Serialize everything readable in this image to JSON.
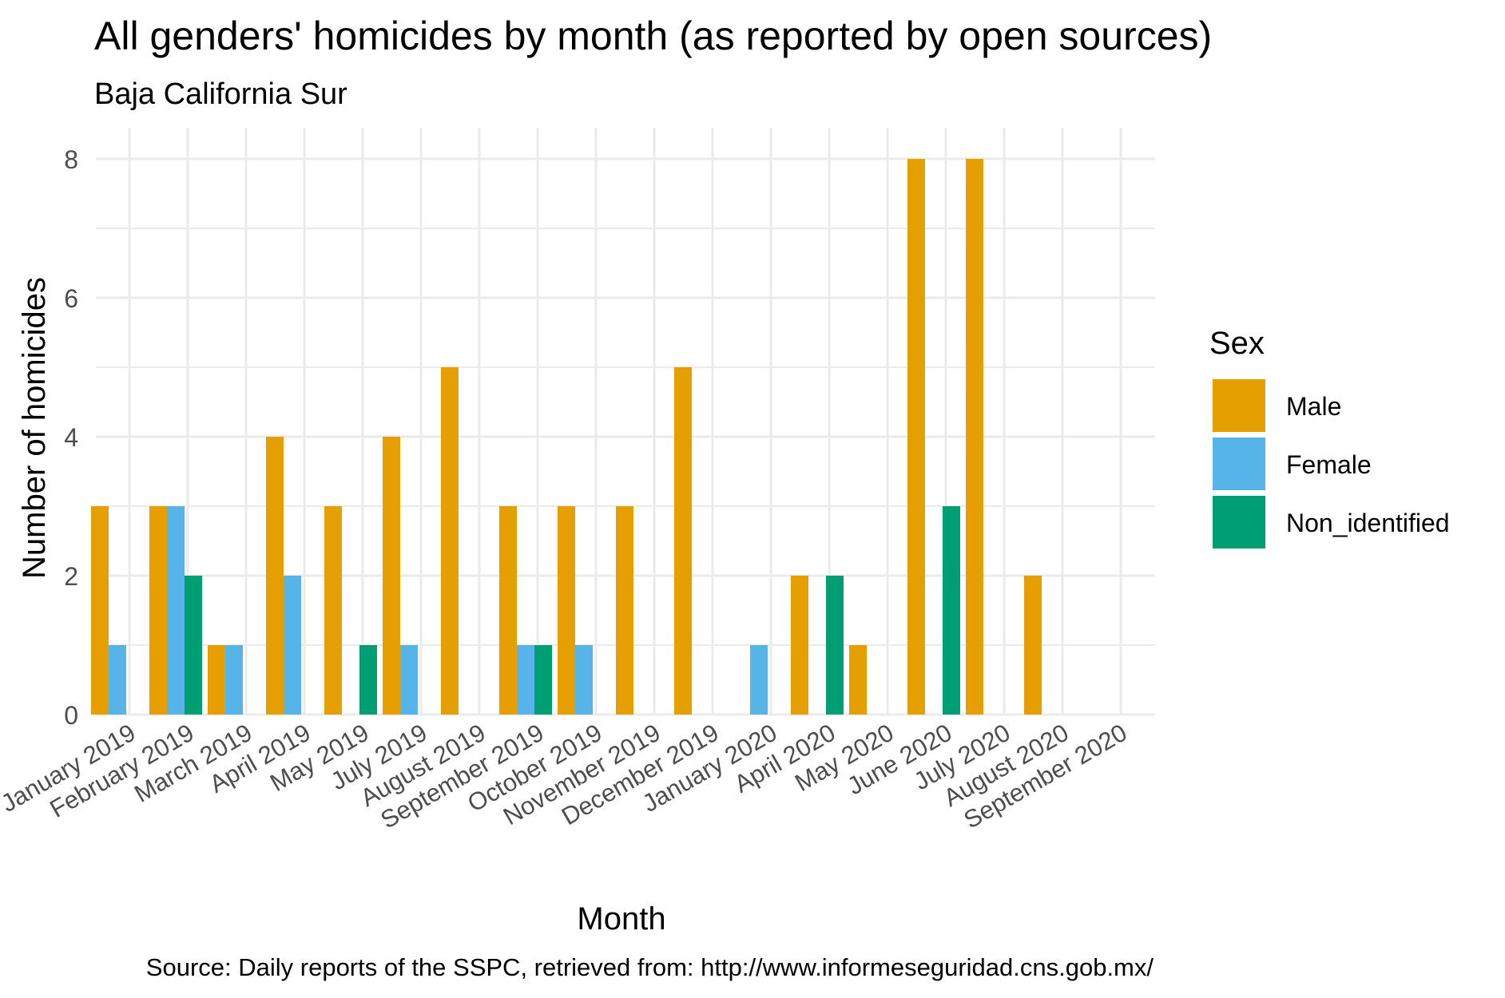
{
  "chart_data": {
    "type": "bar",
    "title": "All genders' homicides by month (as reported by open sources)",
    "subtitle": "Baja California Sur",
    "xlabel": "Month",
    "ylabel": "Number of homicides",
    "caption": "Source: Daily reports of the SSPC, retrieved from: http://www.informeseguridad.cns.gob.mx/",
    "ylim": [
      0,
      8.5
    ],
    "y_ticks": [
      0,
      2,
      4,
      6,
      8
    ],
    "grid": true,
    "legend": {
      "title": "Sex",
      "placement": "right"
    },
    "categories": [
      "January 2019",
      "February 2019",
      "March 2019",
      "April 2019",
      "May 2019",
      "July 2019",
      "August 2019",
      "September 2019",
      "October 2019",
      "November 2019",
      "December 2019",
      "January 2020",
      "April 2020",
      "May 2020",
      "June 2020",
      "July 2020",
      "August 2020",
      "September 2020"
    ],
    "series": [
      {
        "name": "Male",
        "color": "#E69F00",
        "values": [
          3,
          3,
          1,
          4,
          3,
          4,
          5,
          3,
          3,
          3,
          5,
          0,
          2,
          1,
          8,
          8,
          2,
          0
        ]
      },
      {
        "name": "Female",
        "color": "#56B4E9",
        "values": [
          1,
          3,
          1,
          2,
          0,
          1,
          0,
          1,
          1,
          0,
          0,
          1,
          0,
          0,
          0,
          0,
          0,
          0
        ]
      },
      {
        "name": "Non_identified",
        "color": "#009E73",
        "values": [
          0,
          2,
          0,
          0,
          1,
          0,
          0,
          1,
          0,
          0,
          0,
          0,
          2,
          0,
          3,
          0,
          0,
          0
        ]
      }
    ]
  }
}
